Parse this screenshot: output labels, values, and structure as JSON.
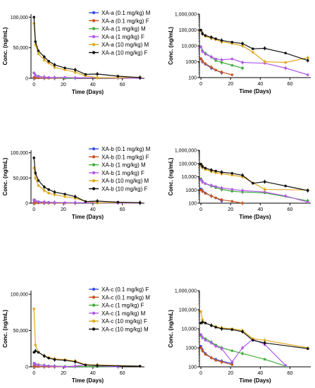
{
  "colors": {
    "blue": "#3550e0",
    "orange": "#c8541f",
    "green": "#3fae3b",
    "violet": "#b25ae8",
    "gold": "#e0a81e",
    "black": "#111111"
  },
  "chart_data": [
    {
      "type": "line",
      "id": "A-lin",
      "scale": "linear",
      "xlabel": "Time (Days)",
      "ylabel": "Conc. (ng/mL)",
      "xlim": [
        -2,
        75
      ],
      "ylim": [
        0,
        105000
      ],
      "xticks": [
        0,
        20,
        40,
        60
      ],
      "xtick_labels": [
        "0",
        "20",
        "40",
        "60"
      ],
      "yticks": [
        0,
        50000,
        100000
      ],
      "ytick_labels": [
        "0",
        "50,000",
        "100,000"
      ],
      "legend": "top-right",
      "series": [
        {
          "name": "XA-a (0.1 mg/kg) M",
          "color": "blue",
          "x": [
            0,
            1,
            3,
            7,
            10,
            14
          ],
          "y": [
            1500,
            1000,
            700,
            400,
            300,
            200
          ]
        },
        {
          "name": "XA-a (0.1 mg/kg) F",
          "color": "orange",
          "x": [
            0,
            1,
            3,
            7,
            10,
            14,
            21
          ],
          "y": [
            1600,
            1100,
            750,
            450,
            300,
            220,
            150
          ]
        },
        {
          "name": "XA-a (1 mg/kg) M",
          "color": "green",
          "x": [
            0,
            1,
            3,
            7,
            10,
            14,
            21,
            28
          ],
          "y": [
            9000,
            5000,
            3500,
            2000,
            1200,
            900,
            600,
            400
          ]
        },
        {
          "name": "XA-a (1 mg/kg) F",
          "color": "violet",
          "x": [
            0,
            1,
            3,
            7,
            10,
            14,
            21,
            28,
            43,
            57,
            72
          ],
          "y": [
            8500,
            4500,
            3000,
            2000,
            1500,
            1300,
            1500,
            900,
            800,
            400,
            150
          ]
        },
        {
          "name": "XA-a (10 mg/kg) M",
          "color": "gold",
          "x": [
            0,
            1,
            3,
            7,
            10,
            14,
            21,
            28,
            35,
            43,
            57,
            72
          ],
          "y": [
            90000,
            55000,
            40000,
            30000,
            25000,
            18000,
            14000,
            10000,
            4000,
            1000,
            900,
            1800
          ]
        },
        {
          "name": "XA-a (10 mg/kg) F",
          "color": "black",
          "x": [
            0,
            1,
            3,
            7,
            10,
            14,
            21,
            28,
            35,
            43,
            57,
            72
          ],
          "y": [
            100000,
            60000,
            45000,
            35000,
            28000,
            22000,
            17000,
            14000,
            6500,
            7000,
            3500,
            1200
          ]
        }
      ]
    },
    {
      "type": "line",
      "id": "A-log",
      "scale": "log",
      "xlabel": "Time (Days)",
      "ylabel": "Conc. (ng/mL)",
      "xlim": [
        -1,
        74
      ],
      "ylim": [
        100,
        1000000
      ],
      "xticks": [
        0,
        20,
        40,
        60
      ],
      "xtick_labels": [
        "0",
        "20",
        "40",
        "60"
      ],
      "yticks": [
        100,
        1000,
        10000,
        100000,
        1000000
      ],
      "ytick_labels": [
        "100",
        "1000",
        "10,000",
        "100,000",
        "1,000,000"
      ],
      "series": "same as XA-a linear panel"
    },
    {
      "type": "line",
      "id": "B-lin",
      "scale": "linear",
      "xlabel": "Time (Days)",
      "ylabel": "Conc. (ng/mL)",
      "xlim": [
        -2,
        75
      ],
      "ylim": [
        0,
        105000
      ],
      "xticks": [
        0,
        20,
        40,
        60
      ],
      "xtick_labels": [
        "0",
        "20",
        "40",
        "60"
      ],
      "yticks": [
        0,
        50000,
        100000
      ],
      "ytick_labels": [
        "0",
        "50,000",
        "100,000"
      ],
      "legend": "top-right",
      "series": [
        {
          "name": "XA-b (0.1 mg/kg) M",
          "color": "blue",
          "x": [
            0,
            1,
            3,
            7,
            10,
            14
          ],
          "y": [
            1200,
            900,
            600,
            350,
            250,
            150
          ]
        },
        {
          "name": "XA-b (0.1 mg/kg) F",
          "color": "orange",
          "x": [
            0,
            1,
            3,
            7,
            10,
            14,
            21,
            28
          ],
          "y": [
            1000,
            800,
            550,
            350,
            250,
            180,
            140,
            100
          ]
        },
        {
          "name": "XA-b (1 mg/kg) M",
          "color": "green",
          "x": [
            0,
            1,
            3,
            7,
            10,
            14,
            21,
            28,
            43,
            72
          ],
          "y": [
            7000,
            4500,
            3000,
            2000,
            1500,
            1100,
            800,
            700,
            600,
            150
          ]
        },
        {
          "name": "XA-b (1 mg/kg) F",
          "color": "violet",
          "x": [
            0,
            1,
            3,
            7,
            10,
            14,
            21,
            28,
            43,
            57,
            72
          ],
          "y": [
            6000,
            4000,
            3000,
            2200,
            1800,
            1400,
            1100,
            900,
            700,
            350,
            120
          ]
        },
        {
          "name": "XA-b (10 mg/kg) M",
          "color": "gold",
          "x": [
            0,
            1,
            3,
            7,
            10,
            14,
            21,
            28,
            35,
            43,
            72
          ],
          "y": [
            70000,
            50000,
            35000,
            25000,
            20000,
            17000,
            13000,
            10000,
            3500,
            1100,
            1000
          ]
        },
        {
          "name": "XA-b (10 mg/kg) F",
          "color": "black",
          "x": [
            0,
            1,
            3,
            7,
            10,
            14,
            21,
            28,
            35,
            43,
            57,
            72
          ],
          "y": [
            90000,
            60000,
            45000,
            32000,
            27000,
            22000,
            18000,
            13000,
            3200,
            4200,
            2000,
            900
          ]
        }
      ]
    },
    {
      "type": "line",
      "id": "B-log",
      "scale": "log",
      "xlabel": "Time (Days)",
      "ylabel": "Conc. (ng/mL)",
      "xlim": [
        -1,
        74
      ],
      "ylim": [
        100,
        1000000
      ],
      "xticks": [
        0,
        20,
        40,
        60
      ],
      "xtick_labels": [
        "0",
        "20",
        "40",
        "60"
      ],
      "yticks": [
        100,
        1000,
        10000,
        100000,
        1000000
      ],
      "ytick_labels": [
        "100",
        "1000",
        "10,000",
        "100,000",
        "1,000,000"
      ],
      "series": "same as XA-b linear panel"
    },
    {
      "type": "line",
      "id": "C-lin",
      "scale": "linear",
      "xlabel": "Time (Days)",
      "ylabel": "Conc. (ng/mL)",
      "xlim": [
        -2,
        75
      ],
      "ylim": [
        0,
        105000
      ],
      "xticks": [
        0,
        20,
        40,
        60
      ],
      "xtick_labels": [
        "0",
        "20",
        "40",
        "60"
      ],
      "yticks": [
        0,
        50000,
        100000
      ],
      "ytick_labels": [
        "0",
        "50,000",
        "100,000"
      ],
      "legend": "top-right",
      "series": [
        {
          "name": "XA-c (0.1 mg/kg) F",
          "color": "blue",
          "x": [
            0,
            1,
            3,
            7,
            10,
            14,
            21
          ],
          "y": [
            1200,
            800,
            500,
            300,
            250,
            200,
            150
          ]
        },
        {
          "name": "XA-c (0.1 mg/kg) M",
          "color": "orange",
          "x": [
            0,
            1,
            3,
            7,
            10,
            14,
            21
          ],
          "y": [
            1000,
            700,
            450,
            300,
            220,
            180,
            130
          ]
        },
        {
          "name": "XA-c (1 mg/kg) F",
          "color": "green",
          "x": [
            0,
            1,
            3,
            7,
            10,
            14,
            21,
            28,
            43,
            57
          ],
          "y": [
            4500,
            3500,
            3000,
            2000,
            1400,
            1000,
            700,
            500,
            250,
            110
          ]
        },
        {
          "name": "XA-c (1 mg/kg) M",
          "color": "violet",
          "x": [
            0,
            1,
            3,
            7,
            10,
            14,
            21,
            28,
            35,
            43,
            57
          ],
          "y": [
            5000,
            3500,
            2500,
            1800,
            1200,
            900,
            180,
            1000,
            2800,
            1500,
            120
          ]
        },
        {
          "name": "XA-c (10 mg/kg) F",
          "color": "gold",
          "x": [
            0,
            1,
            3,
            7,
            10,
            14,
            21,
            28,
            35,
            43,
            72
          ],
          "y": [
            80000,
            30000,
            20000,
            15000,
            13000,
            11000,
            10000,
            8000,
            3000,
            2500,
            1000
          ]
        },
        {
          "name": "XA-c (10 mg/kg) M",
          "color": "black",
          "x": [
            0,
            1,
            3,
            7,
            10,
            14,
            21,
            28,
            35,
            43,
            72
          ],
          "y": [
            20000,
            22000,
            20000,
            15000,
            12000,
            10000,
            9000,
            7000,
            2500,
            1800,
            900
          ]
        }
      ]
    },
    {
      "type": "line",
      "id": "C-log",
      "scale": "log",
      "xlabel": "Time (Days)",
      "ylabel": "Conc. (ng/mL)",
      "xlim": [
        -1,
        74
      ],
      "ylim": [
        100,
        1000000
      ],
      "xticks": [
        0,
        20,
        40,
        60
      ],
      "xtick_labels": [
        "0",
        "20",
        "40",
        "60"
      ],
      "yticks": [
        100,
        1000,
        10000,
        100000,
        1000000
      ],
      "ytick_labels": [
        "100",
        "1000",
        "10,000",
        "100,000",
        "1,000,000"
      ],
      "series": "same as XA-c linear panel"
    }
  ]
}
